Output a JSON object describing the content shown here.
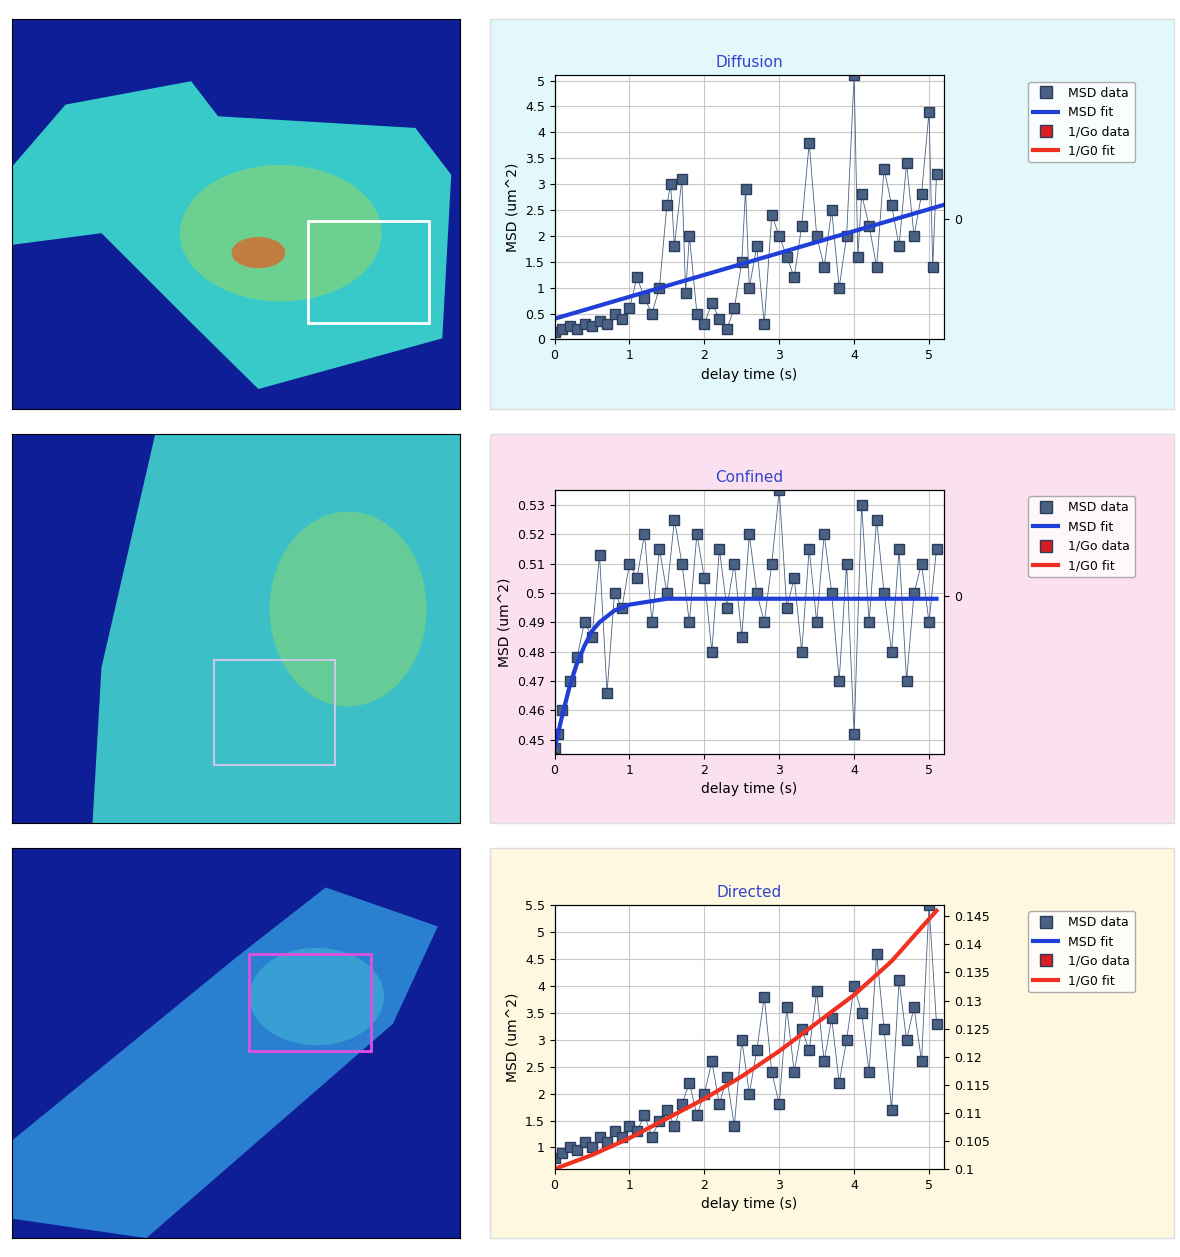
{
  "chart_data": [
    {
      "type": "scatter",
      "title": "Diffusion",
      "x_label": "delay time (s)",
      "y_label": "MSD (um^2)",
      "xlim": [
        0,
        5.2
      ],
      "xticks": [
        0,
        1,
        2,
        3,
        4,
        5
      ],
      "ylim": [
        0,
        5.1
      ],
      "yticks": [
        0,
        0.5,
        1,
        1.5,
        2,
        2.5,
        3,
        3.5,
        4,
        4.5,
        5
      ],
      "y2lim": [
        -1,
        1.2
      ],
      "y2ticks": [
        0
      ],
      "grid": true,
      "legend": "upper left",
      "series": [
        {
          "name": "MSD data",
          "type": "scatter",
          "color": "#4a6183",
          "marker": "square",
          "line_style": "solid",
          "x": [
            0,
            0.1,
            0.2,
            0.3,
            0.4,
            0.5,
            0.6,
            0.7,
            0.8,
            0.9,
            1.0,
            1.1,
            1.2,
            1.3,
            1.4,
            1.5,
            1.55,
            1.6,
            1.7,
            1.75,
            1.8,
            1.9,
            2.0,
            2.1,
            2.2,
            2.3,
            2.4,
            2.5,
            2.55,
            2.6,
            2.7,
            2.8,
            2.9,
            3.0,
            3.1,
            3.2,
            3.3,
            3.4,
            3.5,
            3.6,
            3.7,
            3.8,
            3.9,
            4.0,
            4.05,
            4.1,
            4.2,
            4.3,
            4.4,
            4.5,
            4.6,
            4.7,
            4.8,
            4.9,
            5.0,
            5.05,
            5.1
          ],
          "values": [
            0.15,
            0.2,
            0.25,
            0.2,
            0.3,
            0.25,
            0.35,
            0.3,
            0.5,
            0.4,
            0.6,
            1.2,
            0.8,
            0.5,
            1.0,
            2.6,
            3.0,
            1.8,
            3.1,
            0.9,
            2.0,
            0.5,
            0.3,
            0.7,
            0.4,
            0.2,
            0.6,
            1.5,
            2.9,
            1.0,
            1.8,
            0.3,
            2.4,
            2.0,
            1.6,
            1.2,
            2.2,
            3.8,
            2.0,
            1.4,
            2.5,
            1.0,
            2.0,
            5.1,
            1.6,
            2.8,
            2.2,
            1.4,
            3.3,
            2.6,
            1.8,
            3.4,
            2.0,
            2.8,
            4.4,
            1.4,
            3.2
          ]
        },
        {
          "name": "MSD fit",
          "type": "line",
          "color": "#1f3fd6",
          "line_style": "solid",
          "x": [
            0,
            5.2
          ],
          "values": [
            0.4,
            2.6
          ]
        },
        {
          "name": "1/Go data",
          "type": "scatter",
          "color": "#d81e1e",
          "marker": "square",
          "line_style": "solid",
          "x": [],
          "values": []
        },
        {
          "name": "1/G0 fit",
          "type": "line",
          "color": "#f03020",
          "line_style": "solid",
          "x": [],
          "values": []
        }
      ]
    },
    {
      "type": "scatter",
      "title": "Confined",
      "x_label": "delay time (s)",
      "y_label": "MSD (um^2)",
      "xlim": [
        0,
        5.2
      ],
      "xticks": [
        0,
        1,
        2,
        3,
        4,
        5
      ],
      "ylim": [
        0.445,
        0.535
      ],
      "yticks": [
        0.45,
        0.46,
        0.47,
        0.48,
        0.49,
        0.5,
        0.51,
        0.52,
        0.53
      ],
      "y2lim": [
        -1.2,
        0.8
      ],
      "y2ticks": [
        0
      ],
      "grid": true,
      "legend": "upper left",
      "series": [
        {
          "name": "MSD data",
          "type": "scatter",
          "color": "#4a6183",
          "marker": "square",
          "line_style": "solid",
          "x": [
            0,
            0.05,
            0.1,
            0.2,
            0.3,
            0.4,
            0.5,
            0.6,
            0.7,
            0.8,
            0.9,
            1.0,
            1.1,
            1.2,
            1.3,
            1.4,
            1.5,
            1.6,
            1.7,
            1.8,
            1.9,
            2.0,
            2.1,
            2.2,
            2.3,
            2.4,
            2.5,
            2.6,
            2.7,
            2.8,
            2.9,
            3.0,
            3.1,
            3.2,
            3.3,
            3.4,
            3.5,
            3.6,
            3.7,
            3.8,
            3.9,
            4.0,
            4.1,
            4.2,
            4.3,
            4.4,
            4.5,
            4.6,
            4.7,
            4.8,
            4.9,
            5.0,
            5.1
          ],
          "values": [
            0.447,
            0.452,
            0.46,
            0.47,
            0.478,
            0.49,
            0.485,
            0.513,
            0.466,
            0.5,
            0.495,
            0.51,
            0.505,
            0.52,
            0.49,
            0.515,
            0.5,
            0.525,
            0.51,
            0.49,
            0.52,
            0.505,
            0.48,
            0.515,
            0.495,
            0.51,
            0.485,
            0.52,
            0.5,
            0.49,
            0.51,
            0.535,
            0.495,
            0.505,
            0.48,
            0.515,
            0.49,
            0.52,
            0.5,
            0.47,
            0.51,
            0.452,
            0.53,
            0.49,
            0.525,
            0.5,
            0.48,
            0.515,
            0.47,
            0.5,
            0.51,
            0.49,
            0.515
          ]
        },
        {
          "name": "MSD fit",
          "type": "line",
          "color": "#1f3fd6",
          "line_style": "solid",
          "x": [
            0,
            0.1,
            0.2,
            0.3,
            0.4,
            0.5,
            0.6,
            0.8,
            1.0,
            1.5,
            2.0,
            5.1
          ],
          "values": [
            0.447,
            0.458,
            0.468,
            0.476,
            0.482,
            0.487,
            0.49,
            0.494,
            0.496,
            0.498,
            0.498,
            0.498
          ]
        },
        {
          "name": "1/Go data",
          "type": "scatter",
          "color": "#d81e1e",
          "marker": "square",
          "line_style": "solid",
          "x": [],
          "values": []
        },
        {
          "name": "1/G0 fit",
          "type": "line",
          "color": "#f03020",
          "line_style": "solid",
          "x": [],
          "values": []
        }
      ]
    },
    {
      "type": "scatter",
      "title": "Directed",
      "x_label": "delay time (s)",
      "y_label": "MSD (um^2)",
      "xlim": [
        0,
        5.2
      ],
      "xticks": [
        0,
        1,
        2,
        3,
        4,
        5
      ],
      "ylim": [
        0.6,
        5.5
      ],
      "yticks": [
        1,
        1.5,
        2,
        2.5,
        3,
        3.5,
        4,
        4.5,
        5,
        5.5
      ],
      "y2lim": [
        0.1,
        0.147
      ],
      "y2ticks": [
        0.1,
        0.105,
        0.11,
        0.115,
        0.12,
        0.125,
        0.13,
        0.135,
        0.14,
        0.145
      ],
      "grid": true,
      "legend": "upper left",
      "series": [
        {
          "name": "MSD data",
          "type": "scatter",
          "color": "#4a6183",
          "marker": "square",
          "line_style": "solid",
          "x": [
            0,
            0.1,
            0.2,
            0.3,
            0.4,
            0.5,
            0.6,
            0.7,
            0.8,
            0.9,
            1.0,
            1.1,
            1.2,
            1.3,
            1.4,
            1.5,
            1.6,
            1.7,
            1.8,
            1.9,
            2.0,
            2.1,
            2.2,
            2.3,
            2.4,
            2.5,
            2.6,
            2.7,
            2.8,
            2.9,
            3.0,
            3.1,
            3.2,
            3.3,
            3.4,
            3.5,
            3.6,
            3.7,
            3.8,
            3.9,
            4.0,
            4.1,
            4.2,
            4.3,
            4.4,
            4.5,
            4.6,
            4.7,
            4.8,
            4.9,
            5.0,
            5.1
          ],
          "values": [
            0.8,
            0.9,
            1.0,
            0.95,
            1.1,
            1.0,
            1.2,
            1.1,
            1.3,
            1.2,
            1.4,
            1.3,
            1.6,
            1.2,
            1.5,
            1.7,
            1.4,
            1.8,
            2.2,
            1.6,
            2.0,
            2.6,
            1.8,
            2.3,
            1.4,
            3.0,
            2.0,
            2.8,
            3.8,
            2.4,
            1.8,
            3.6,
            2.4,
            3.2,
            2.8,
            3.9,
            2.6,
            3.4,
            2.2,
            3.0,
            4.0,
            3.5,
            2.4,
            4.6,
            3.2,
            1.7,
            4.1,
            3.0,
            3.6,
            2.6,
            5.5,
            3.3
          ]
        },
        {
          "name": "MSD fit",
          "type": "line",
          "color": "#1f3fd6",
          "line_style": "solid",
          "x": [],
          "values": []
        },
        {
          "name": "1/Go data",
          "type": "scatter",
          "color": "#d81e1e",
          "marker": "square",
          "line_style": "solid",
          "x": [],
          "values": []
        },
        {
          "name": "1/G0 fit",
          "type": "line",
          "color": "#f03020",
          "line_style": "solid",
          "axis": "y2",
          "x": [
            0,
            0.5,
            1,
            1.5,
            2,
            2.5,
            3,
            3.5,
            4,
            4.5,
            5.1
          ],
          "values": [
            0.1,
            0.1025,
            0.1055,
            0.109,
            0.1125,
            0.1165,
            0.121,
            0.126,
            0.131,
            0.137,
            0.146
          ]
        }
      ]
    }
  ]
}
